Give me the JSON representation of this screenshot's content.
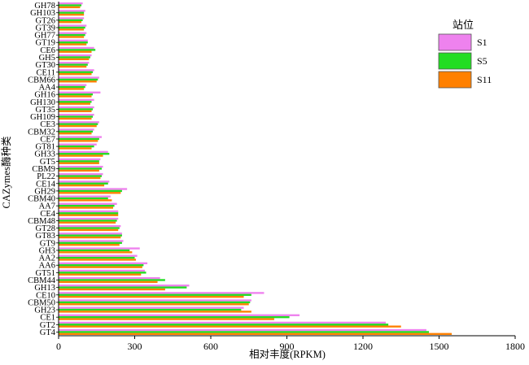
{
  "chart_data": {
    "type": "bar",
    "orientation": "horizontal",
    "xlabel": "相对丰度(RPKM)",
    "ylabel": "CAZymes酶种类",
    "xlim": [
      0,
      1800
    ],
    "xticks": [
      0,
      300,
      600,
      900,
      1200,
      1500,
      1800
    ],
    "legend": {
      "title": "站位",
      "position": "top-right"
    },
    "categories": [
      "GH78",
      "GH103",
      "GT26",
      "GT39",
      "GH77",
      "GT19",
      "CE6",
      "GH5",
      "GT30",
      "CE11",
      "CBM66",
      "AA4",
      "GH16",
      "GH130",
      "GT35",
      "GH109",
      "CE3",
      "CBM32",
      "CE7",
      "GT81",
      "GH33",
      "GT5",
      "CBM9",
      "PL22",
      "CE14",
      "GH29",
      "CBM40",
      "AA7",
      "CE4",
      "CBM48",
      "GT28",
      "GT83",
      "GT9",
      "GH3",
      "AA2",
      "AA6",
      "GT51",
      "CBM44",
      "GH13",
      "CE10",
      "CBM50",
      "GH23",
      "CE1",
      "GT2",
      "GT4"
    ],
    "series": [
      {
        "name": "S1",
        "color": "#ee82ee",
        "values": [
          95,
          105,
          100,
          110,
          110,
          115,
          140,
          130,
          120,
          140,
          160,
          110,
          165,
          140,
          140,
          140,
          160,
          140,
          170,
          150,
          195,
          165,
          175,
          175,
          200,
          270,
          205,
          230,
          235,
          235,
          245,
          250,
          255,
          320,
          310,
          350,
          340,
          400,
          515,
          810,
          760,
          730,
          950,
          1290,
          1450
        ]
      },
      {
        "name": "S5",
        "color": "#22dd22",
        "values": [
          90,
          100,
          95,
          105,
          105,
          115,
          145,
          125,
          115,
          135,
          155,
          105,
          135,
          130,
          135,
          135,
          155,
          135,
          160,
          140,
          200,
          160,
          170,
          170,
          195,
          250,
          195,
          220,
          235,
          230,
          240,
          250,
          250,
          280,
          300,
          335,
          345,
          420,
          505,
          760,
          755,
          720,
          910,
          1300,
          1460
        ]
      },
      {
        "name": "S11",
        "color": "#ff8000",
        "values": [
          85,
          100,
          90,
          100,
          100,
          110,
          130,
          120,
          110,
          130,
          150,
          100,
          130,
          125,
          130,
          130,
          150,
          130,
          155,
          130,
          175,
          160,
          160,
          165,
          180,
          245,
          210,
          215,
          235,
          225,
          235,
          245,
          240,
          290,
          305,
          330,
          325,
          390,
          420,
          730,
          750,
          760,
          850,
          1350,
          1550
        ]
      }
    ]
  }
}
